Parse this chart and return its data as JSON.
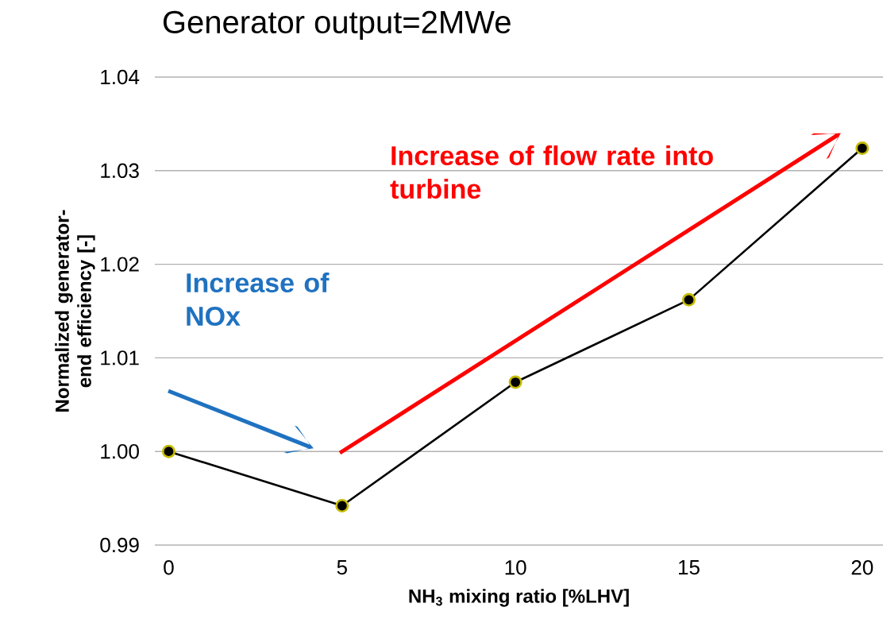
{
  "chart_data": {
    "type": "line",
    "title": "Generator output=2MWe",
    "xlabel": "NH$_{3}$ mixing ratio [%LHV]",
    "ylabel": "Normalized generator-end efficiency [-]",
    "x": [
      0,
      5,
      10,
      15,
      20
    ],
    "series": [
      {
        "color": "#000000",
        "values": [
          1.0,
          0.9942,
          1.0074,
          1.0162,
          1.0324
        ]
      }
    ],
    "xlim": [
      -0.4,
      20.6
    ],
    "xticks": [
      0,
      5,
      10,
      15,
      20
    ],
    "ylim": [
      0.99,
      1.04
    ],
    "yticks": [
      {
        "value": 0.99,
        "label": "0.99"
      },
      {
        "value": 1.0,
        "label": "1.00"
      },
      {
        "value": 1.01,
        "label": "1.01"
      },
      {
        "value": 1.02,
        "label": "1.02"
      },
      {
        "value": 1.03,
        "label": "1.03"
      },
      {
        "value": 1.04,
        "label": "1.04"
      }
    ],
    "grid": "y",
    "marker": "circle",
    "line_style": "solid",
    "annotations": [
      "Increase of NOx",
      "Increase  of flow rate into turbine"
    ]
  }
}
